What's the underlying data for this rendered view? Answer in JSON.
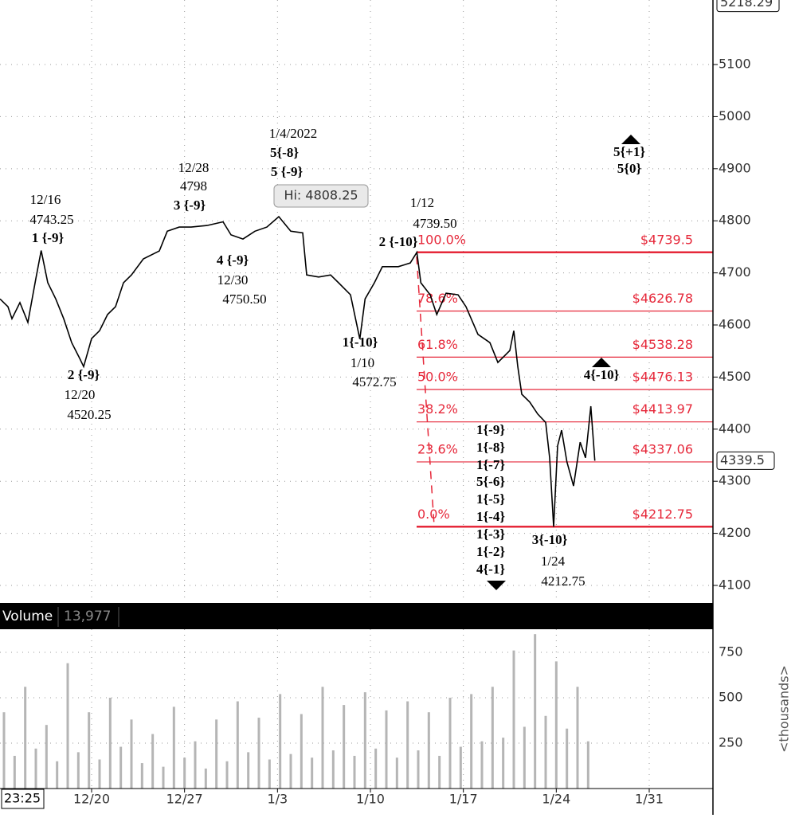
{
  "chart_data": [
    {
      "type": "line",
      "color": "#000000",
      "x": [
        -6.9,
        -6.3,
        -6.0,
        -5.4,
        -4.8,
        -4.2,
        -3.8,
        -3.3,
        -2.7,
        -2.1,
        -1.5,
        -0.9,
        -0.6,
        0,
        0.6,
        1.2,
        1.8,
        2.4,
        3.0,
        3.9,
        5.1,
        5.7,
        6.6,
        7.5,
        8.7,
        9.9,
        10.5,
        11.4,
        12.3,
        13.2,
        14.1,
        15.0,
        15.9,
        16.2,
        17.1,
        18.0,
        18.6,
        19.5,
        20.2,
        20.6,
        21.3,
        21.9,
        23.1,
        24.0,
        24.5,
        24.8,
        25.5,
        26.0,
        26.7,
        27.6,
        28.2,
        29.1,
        30.0,
        30.6,
        31.5,
        31.8,
        32.1,
        32.4,
        33.0,
        33.6,
        34.2,
        34.5,
        34.8,
        35.1,
        35.4,
        35.8,
        36.3,
        36.8,
        37.2,
        37.6,
        37.9
      ],
      "values": [
        4650,
        4635,
        4612,
        4643,
        4605,
        4689,
        4743,
        4681,
        4650,
        4612,
        4566,
        4536,
        4520,
        4574,
        4589,
        4620,
        4635,
        4681,
        4696,
        4727,
        4742,
        4780,
        4788,
        4788,
        4791,
        4798,
        4773,
        4765,
        4780,
        4788,
        4808,
        4780,
        4777,
        4696,
        4692,
        4696,
        4681,
        4658,
        4573,
        4650,
        4681,
        4712,
        4712,
        4719,
        4739.5,
        4681,
        4658,
        4620,
        4661,
        4658,
        4635,
        4582,
        4566,
        4528,
        4551,
        4589,
        4520,
        4467,
        4452,
        4429,
        4413,
        4345,
        4212.75,
        4368,
        4398,
        4337,
        4291,
        4375,
        4345,
        4444,
        4339.5
      ],
      "xlim": [
        -6.9,
        46.8
      ],
      "ylim": [
        4069.4,
        5223.9
      ],
      "yticks": [
        4100,
        4200,
        4300,
        4400,
        4500,
        4600,
        4700,
        4800,
        4900,
        5000,
        5100
      ],
      "xticks": [
        {
          "value": 0,
          "label": "12/20"
        },
        {
          "value": 7,
          "label": "12/27"
        },
        {
          "value": 14,
          "label": "1/3"
        },
        {
          "value": 21,
          "label": "1/10"
        },
        {
          "value": 28,
          "label": "1/17"
        },
        {
          "value": 35,
          "label": "1/24"
        },
        {
          "value": 42,
          "label": "1/31"
        }
      ],
      "grid": true,
      "time_label": "23:25",
      "high_label": 5218.29,
      "last_value": 4339.5,
      "tooltip": "Hi: 4808.25",
      "fib_color": "#e6283a",
      "fib_levels": [
        {
          "percent": {
            "value": 100,
            "label": "100.0%"
          },
          "price": {
            "value": 4739.5,
            "label": "$4739.5"
          }
        },
        {
          "percent": {
            "value": 78.6,
            "label": "78.6%"
          },
          "price": {
            "value": 4626.78,
            "label": "$4626.78"
          }
        },
        {
          "percent": {
            "value": 61.8,
            "label": "61.8%"
          },
          "price": {
            "value": 4538.28,
            "label": "$4538.28"
          }
        },
        {
          "percent": {
            "value": 50,
            "label": "50.0%"
          },
          "price": {
            "value": 4476.13,
            "label": "$4476.13"
          }
        },
        {
          "percent": {
            "value": 38.2,
            "label": "38.2%"
          },
          "price": {
            "value": 4413.97,
            "label": "$4413.97"
          }
        },
        {
          "percent": {
            "value": 23.6,
            "label": "23.6%"
          },
          "price": {
            "value": 4337.06,
            "label": "$4337.06"
          }
        },
        {
          "percent": {
            "value": 0,
            "label": "0.0%"
          },
          "price": {
            "value": 4212.75,
            "label": "$4212.75"
          }
        }
      ],
      "annotations": [
        "12/16",
        "4743.25",
        "1 {-9}",
        "2 {-9}",
        "12/20",
        "4520.25",
        "12/28",
        "4798",
        "3 {-9}",
        "4 {-9}",
        "12/30",
        "4750.50",
        "1/4/2022",
        "5{-8}",
        "5 {-9}",
        "1/12",
        "4739.50",
        "2 {-10}",
        "1{-10}",
        "1/10",
        "4572.75",
        "1{-9}",
        "1{-8}",
        "1{-7}",
        "5{-6}",
        "1{-5}",
        "1{-4}",
        "1{-3}",
        "1{-2}",
        "4{-1}",
        "3{-10}",
        "1/24",
        "4212.75",
        "4{-10}",
        "5{+1}",
        "5{0}"
      ]
    },
    {
      "type": "bar",
      "title": "Volume",
      "readout": {
        "value": 13977,
        "label": "13,977"
      },
      "y_label": "<thousands>",
      "color": "#b5b5b5",
      "x": [
        -6.6,
        -5.8,
        -5.0,
        -4.2,
        -3.4,
        -2.6,
        -1.8,
        -1.0,
        -0.2,
        0.6,
        1.4,
        2.2,
        3.0,
        3.8,
        4.6,
        5.4,
        6.2,
        7.0,
        7.8,
        8.6,
        9.4,
        10.2,
        11.0,
        11.8,
        12.6,
        13.4,
        14.2,
        15.0,
        15.8,
        16.6,
        17.4,
        18.2,
        19.0,
        19.8,
        20.6,
        21.4,
        22.2,
        23.0,
        23.8,
        24.6,
        25.4,
        26.2,
        27.0,
        27.8,
        28.6,
        29.4,
        30.2,
        31.0,
        31.8,
        32.6,
        33.4,
        34.2,
        35.0,
        35.8,
        36.6,
        37.4
      ],
      "values": [
        420,
        180,
        560,
        220,
        350,
        150,
        690,
        200,
        420,
        160,
        500,
        230,
        380,
        140,
        300,
        120,
        450,
        170,
        260,
        110,
        380,
        150,
        480,
        200,
        390,
        160,
        520,
        190,
        410,
        170,
        560,
        210,
        460,
        180,
        530,
        220,
        430,
        170,
        480,
        210,
        420,
        180,
        500,
        230,
        520,
        260,
        560,
        280,
        760,
        340,
        850,
        400,
        700,
        330,
        560,
        260
      ],
      "ylim": [
        0,
        877
      ],
      "yticks": [
        250,
        500,
        750
      ],
      "grid": true
    }
  ]
}
